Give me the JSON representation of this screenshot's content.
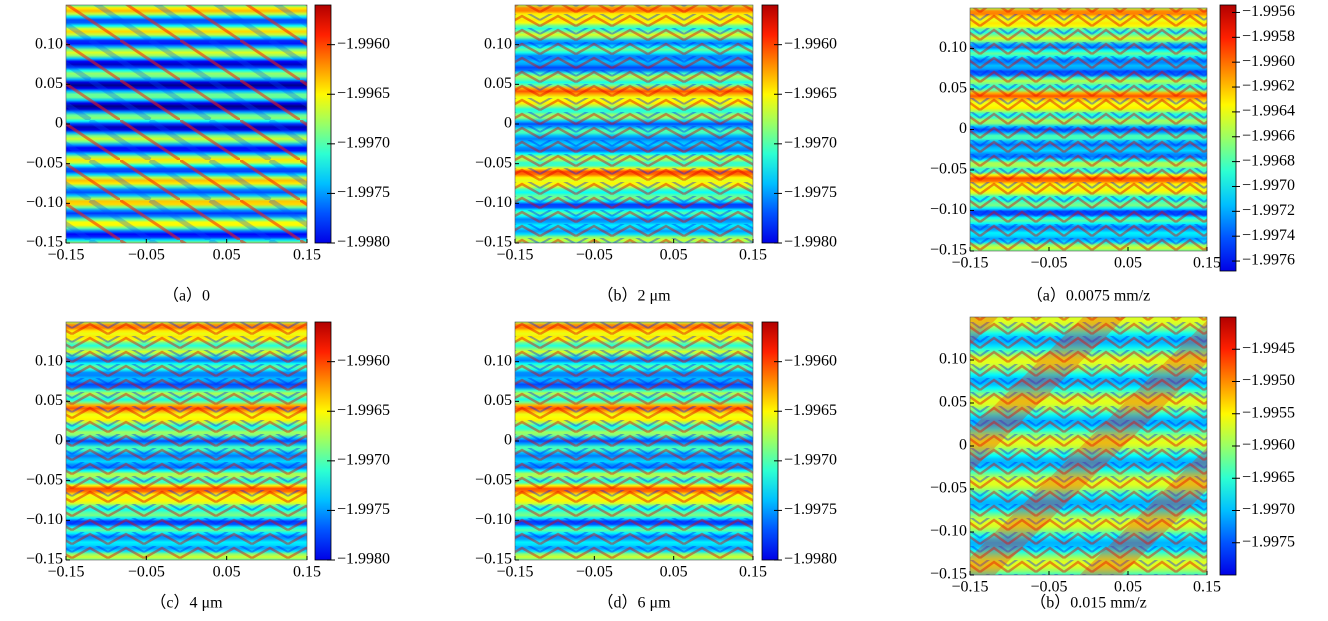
{
  "chart_data": [
    {
      "type": "heatmap",
      "caption": "（a）0",
      "xlim": [
        -0.15,
        0.15
      ],
      "ylim": [
        -0.15,
        0.15
      ],
      "xticks": [
        {
          "value": -0.15,
          "label": "−0.15"
        },
        {
          "value": -0.05,
          "label": "−0.05"
        },
        0.05,
        0.15
      ],
      "yticks": [
        {
          "value": -0.15,
          "label": "−0.15"
        },
        {
          "value": -0.1,
          "label": "−0.10"
        },
        {
          "value": -0.05,
          "label": "−0.05"
        },
        0,
        0.05,
        {
          "value": 0.1,
          "label": "0.10"
        }
      ],
      "colorbar": {
        "lim": [
          -1.998,
          -1.9956
        ],
        "ticks": [
          {
            "value": -1.998,
            "label": "−1.9980"
          },
          {
            "value": -1.9975,
            "label": "−1.9975"
          },
          {
            "value": -1.997,
            "label": "−1.9970"
          },
          {
            "value": -1.9965,
            "label": "−1.9965"
          },
          {
            "value": -1.996,
            "label": "−1.9960"
          }
        ]
      }
    },
    {
      "type": "heatmap",
      "caption": "（b）2 μm",
      "xlim": [
        -0.15,
        0.15
      ],
      "ylim": [
        -0.15,
        0.15
      ],
      "xticks": [
        {
          "value": -0.15,
          "label": "−0.15"
        },
        {
          "value": -0.05,
          "label": "−0.05"
        },
        0.05,
        0.15
      ],
      "yticks": [
        {
          "value": -0.15,
          "label": "−0.15"
        },
        {
          "value": -0.1,
          "label": "−0.10"
        },
        {
          "value": -0.05,
          "label": "−0.05"
        },
        0,
        0.05,
        {
          "value": 0.1,
          "label": "0.10"
        }
      ],
      "colorbar": {
        "lim": [
          -1.998,
          -1.9956
        ],
        "ticks": [
          {
            "value": -1.998,
            "label": "−1.9980"
          },
          {
            "value": -1.9975,
            "label": "−1.9975"
          },
          {
            "value": -1.997,
            "label": "−1.9970"
          },
          {
            "value": -1.9965,
            "label": "−1.9965"
          },
          {
            "value": -1.996,
            "label": "−1.9960"
          }
        ]
      }
    },
    {
      "type": "heatmap",
      "caption": "（a）0.0075 mm/z",
      "xlim": [
        -0.15,
        0.15
      ],
      "ylim": [
        -0.15,
        0.15
      ],
      "xticks": [
        {
          "value": -0.15,
          "label": "−0.15"
        },
        {
          "value": -0.05,
          "label": "−0.05"
        },
        0.05,
        0.15
      ],
      "yticks": [
        {
          "value": -0.15,
          "label": "−0.15"
        },
        {
          "value": -0.1,
          "label": "−0.10"
        },
        {
          "value": -0.05,
          "label": "−0.05"
        },
        0,
        0.05,
        {
          "value": 0.1,
          "label": "0.10"
        }
      ],
      "colorbar": {
        "lim": [
          -1.99768,
          -1.99554
        ],
        "ticks": [
          {
            "value": -1.9976,
            "label": "−1.9976"
          },
          {
            "value": -1.9974,
            "label": "−1.9974"
          },
          {
            "value": -1.9972,
            "label": "−1.9972"
          },
          {
            "value": -1.997,
            "label": "−1.9970"
          },
          {
            "value": -1.9968,
            "label": "−1.9968"
          },
          {
            "value": -1.9966,
            "label": "−1.9966"
          },
          {
            "value": -1.9964,
            "label": "−1.9964"
          },
          {
            "value": -1.9962,
            "label": "−1.9962"
          },
          {
            "value": -1.996,
            "label": "−1.9960"
          },
          {
            "value": -1.9958,
            "label": "−1.9958"
          },
          {
            "value": -1.9956,
            "label": "−1.9956"
          }
        ]
      }
    },
    {
      "type": "heatmap",
      "caption": "（c）4 μm",
      "xlim": [
        -0.15,
        0.15
      ],
      "ylim": [
        -0.15,
        0.15
      ],
      "xticks": [
        {
          "value": -0.15,
          "label": "−0.15"
        },
        {
          "value": -0.05,
          "label": "−0.05"
        },
        0.05,
        0.15
      ],
      "yticks": [
        {
          "value": -0.15,
          "label": "−0.15"
        },
        {
          "value": -0.1,
          "label": "−0.10"
        },
        {
          "value": -0.05,
          "label": "−0.05"
        },
        0,
        0.05,
        {
          "value": 0.1,
          "label": "0.10"
        }
      ],
      "colorbar": {
        "lim": [
          -1.998,
          -1.9956
        ],
        "ticks": [
          {
            "value": -1.998,
            "label": "−1.9980"
          },
          {
            "value": -1.9975,
            "label": "−1.9975"
          },
          {
            "value": -1.997,
            "label": "−1.9970"
          },
          {
            "value": -1.9965,
            "label": "−1.9965"
          },
          {
            "value": -1.996,
            "label": "−1.9960"
          }
        ]
      }
    },
    {
      "type": "heatmap",
      "caption": "（d）6 μm",
      "xlim": [
        -0.15,
        0.15
      ],
      "ylim": [
        -0.15,
        0.15
      ],
      "xticks": [
        {
          "value": -0.15,
          "label": "−0.15"
        },
        {
          "value": -0.05,
          "label": "−0.05"
        },
        0.05,
        0.15
      ],
      "yticks": [
        {
          "value": -0.15,
          "label": "−0.15"
        },
        {
          "value": -0.1,
          "label": "−0.10"
        },
        {
          "value": -0.05,
          "label": "−0.05"
        },
        0,
        0.05,
        {
          "value": 0.1,
          "label": "0.10"
        }
      ],
      "colorbar": {
        "lim": [
          -1.998,
          -1.9956
        ],
        "ticks": [
          {
            "value": -1.998,
            "label": "−1.9980"
          },
          {
            "value": -1.9975,
            "label": "−1.9975"
          },
          {
            "value": -1.997,
            "label": "−1.9970"
          },
          {
            "value": -1.9965,
            "label": "−1.9965"
          },
          {
            "value": -1.996,
            "label": "−1.9960"
          }
        ]
      }
    },
    {
      "type": "heatmap",
      "caption": "（b）0.015 mm/z",
      "xlim": [
        -0.15,
        0.15
      ],
      "ylim": [
        -0.15,
        0.15
      ],
      "xticks": [
        {
          "value": -0.15,
          "label": "−0.15"
        },
        {
          "value": -0.05,
          "label": "−0.05"
        },
        0.05,
        0.15
      ],
      "yticks": [
        {
          "value": -0.15,
          "label": "−0.15"
        },
        {
          "value": -0.1,
          "label": "−0.10"
        },
        {
          "value": -0.05,
          "label": "−0.05"
        },
        0,
        0.05,
        {
          "value": 0.1,
          "label": "0.10"
        }
      ],
      "colorbar": {
        "lim": [
          -1.998,
          -1.994
        ],
        "ticks": [
          {
            "value": -1.9975,
            "label": "−1.9975"
          },
          {
            "value": -1.997,
            "label": "−1.9970"
          },
          {
            "value": -1.9965,
            "label": "−1.9965"
          },
          {
            "value": -1.996,
            "label": "−1.9960"
          },
          {
            "value": -1.9955,
            "label": "−1.9955"
          },
          {
            "value": -1.995,
            "label": "−1.9950"
          },
          {
            "value": -1.9945,
            "label": "−1.9945"
          }
        ]
      }
    }
  ]
}
